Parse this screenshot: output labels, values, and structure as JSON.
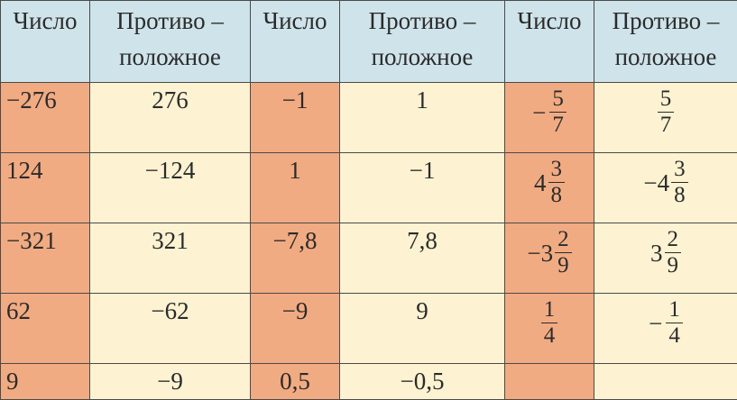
{
  "headers": [
    "Число",
    "Противо –",
    "положное"
  ],
  "rows": [
    {
      "a": "−276",
      "b": "276",
      "c": "−1",
      "d": "1",
      "e": {
        "sign": "−",
        "whole": "",
        "n": "5",
        "d": "7"
      },
      "f": {
        "sign": "",
        "whole": "",
        "n": "5",
        "d": "7"
      }
    },
    {
      "a": "124",
      "b": "−124",
      "c": "1",
      "d": "−1",
      "e": {
        "sign": "",
        "whole": "4",
        "n": "3",
        "d": "8"
      },
      "f": {
        "sign": "",
        "whole": "−4",
        "n": "3",
        "d": "8"
      }
    },
    {
      "a": "−321",
      "b": "321",
      "c": "−7,8",
      "d": "7,8",
      "e": {
        "sign": "",
        "whole": "−3",
        "n": "2",
        "d": "9"
      },
      "f": {
        "sign": "",
        "whole": "3",
        "n": "2",
        "d": "9"
      }
    },
    {
      "a": "62",
      "b": "−62",
      "c": "−9",
      "d": "9",
      "e": {
        "sign": "",
        "whole": "",
        "n": "1",
        "d": "4"
      },
      "f": {
        "sign": "−",
        "whole": "",
        "n": "1",
        "d": "4"
      }
    },
    {
      "a": "9",
      "b": "−9",
      "c": "0,5",
      "d": "−0,5"
    }
  ],
  "colors": {
    "header_bg": "#cfe3ea",
    "number_col_bg": "#f1ab82",
    "opposite_col_bg": "#fdf3d2",
    "border": "#4a4a4a"
  }
}
